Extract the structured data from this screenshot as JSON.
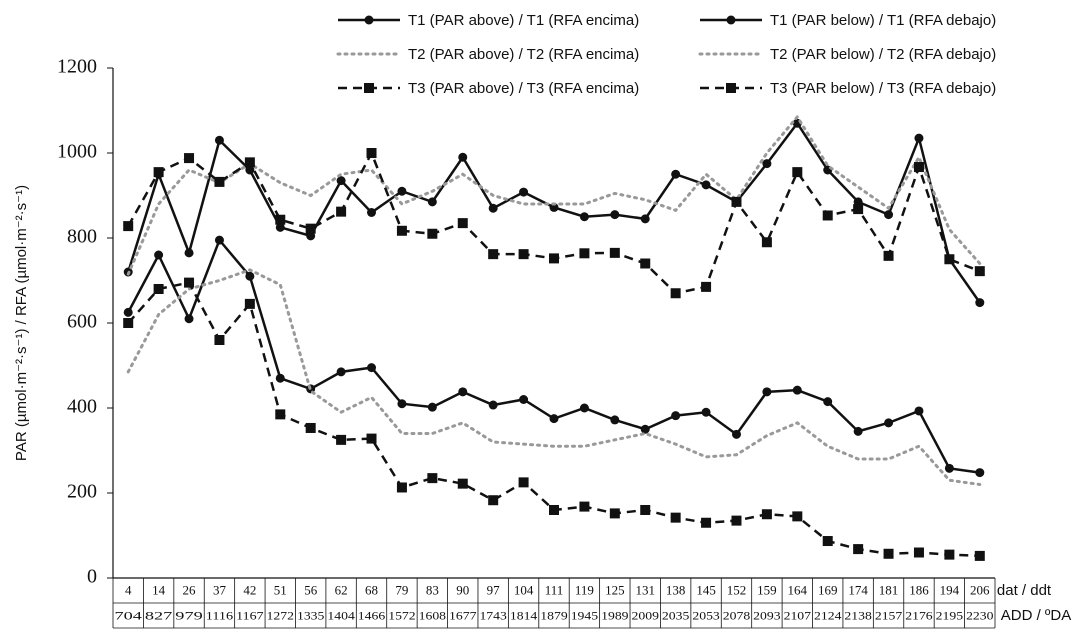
{
  "chart_data": {
    "type": "line",
    "y_label": "PAR (µmol·m⁻²·s⁻¹) / RFA (µmol·m⁻²·s⁻¹)",
    "x_label": "dat / ddt",
    "x2_label": "ADD / ºDA",
    "categories": [
      4,
      14,
      26,
      37,
      42,
      51,
      56,
      62,
      68,
      79,
      83,
      90,
      97,
      104,
      111,
      119,
      125,
      131,
      138,
      145,
      152,
      159,
      164,
      169,
      174,
      181,
      186,
      194,
      206
    ],
    "categories2": [
      704,
      827,
      979,
      1116,
      1167,
      1272,
      1335,
      1404,
      1466,
      1572,
      1608,
      1677,
      1743,
      1814,
      1879,
      1945,
      1989,
      2009,
      2035,
      2053,
      2078,
      2093,
      2107,
      2124,
      2138,
      2157,
      2176,
      2195,
      2230
    ],
    "ylim": [
      0,
      1200
    ],
    "yticks": [
      0,
      200,
      400,
      600,
      800,
      1000,
      1200
    ],
    "series": [
      {
        "name": "T1 (PAR above) / T1 (RFA encima)",
        "color": "#111111",
        "line_style": "solid",
        "marker": "circle",
        "values": [
          720,
          950,
          765,
          1030,
          960,
          825,
          805,
          935,
          860,
          910,
          885,
          990,
          870,
          908,
          872,
          850,
          855,
          845,
          950,
          925,
          885,
          975,
          1070,
          960,
          885,
          855,
          1035,
          750,
          648
        ]
      },
      {
        "name": "T1 (PAR below) / T1 (RFA debajo)",
        "color": "#111111",
        "line_style": "solid",
        "marker": "circle",
        "values": [
          625,
          760,
          610,
          795,
          710,
          470,
          445,
          485,
          495,
          410,
          402,
          438,
          407,
          420,
          375,
          400,
          372,
          350,
          382,
          390,
          338,
          438,
          442,
          415,
          345,
          365,
          393,
          258,
          248
        ]
      },
      {
        "name": "T2 (PAR above) / T2 (RFA encima)",
        "color": "#999999",
        "line_style": "dotted",
        "marker": "none",
        "values": [
          715,
          880,
          960,
          930,
          975,
          930,
          900,
          950,
          960,
          880,
          910,
          950,
          900,
          880,
          880,
          880,
          905,
          890,
          865,
          950,
          890,
          1000,
          1085,
          970,
          920,
          870,
          990,
          820,
          740
        ]
      },
      {
        "name": "T2 (PAR below) / T2 (RFA debajo)",
        "color": "#999999",
        "line_style": "dotted",
        "marker": "none",
        "values": [
          485,
          620,
          680,
          700,
          725,
          690,
          440,
          390,
          425,
          340,
          340,
          365,
          320,
          315,
          310,
          310,
          325,
          340,
          315,
          285,
          290,
          335,
          365,
          310,
          280,
          280,
          310,
          230,
          220
        ]
      },
      {
        "name": "T3 (PAR above) / T3 (RFA encima)",
        "color": "#111111",
        "line_style": "dashed",
        "marker": "square",
        "values": [
          828,
          955,
          988,
          932,
          978,
          843,
          822,
          862,
          1000,
          817,
          810,
          835,
          762,
          762,
          752,
          764,
          765,
          740,
          670,
          685,
          885,
          790,
          955,
          853,
          868,
          758,
          967,
          750,
          722
        ]
      },
      {
        "name": "T3 (PAR below) / T3 (RFA debajo)",
        "color": "#111111",
        "line_style": "dashed",
        "marker": "square",
        "values": [
          600,
          680,
          695,
          560,
          645,
          385,
          353,
          325,
          328,
          213,
          235,
          222,
          183,
          225,
          160,
          168,
          152,
          160,
          142,
          130,
          135,
          150,
          145,
          87,
          68,
          57,
          60,
          55,
          52
        ]
      }
    ]
  }
}
